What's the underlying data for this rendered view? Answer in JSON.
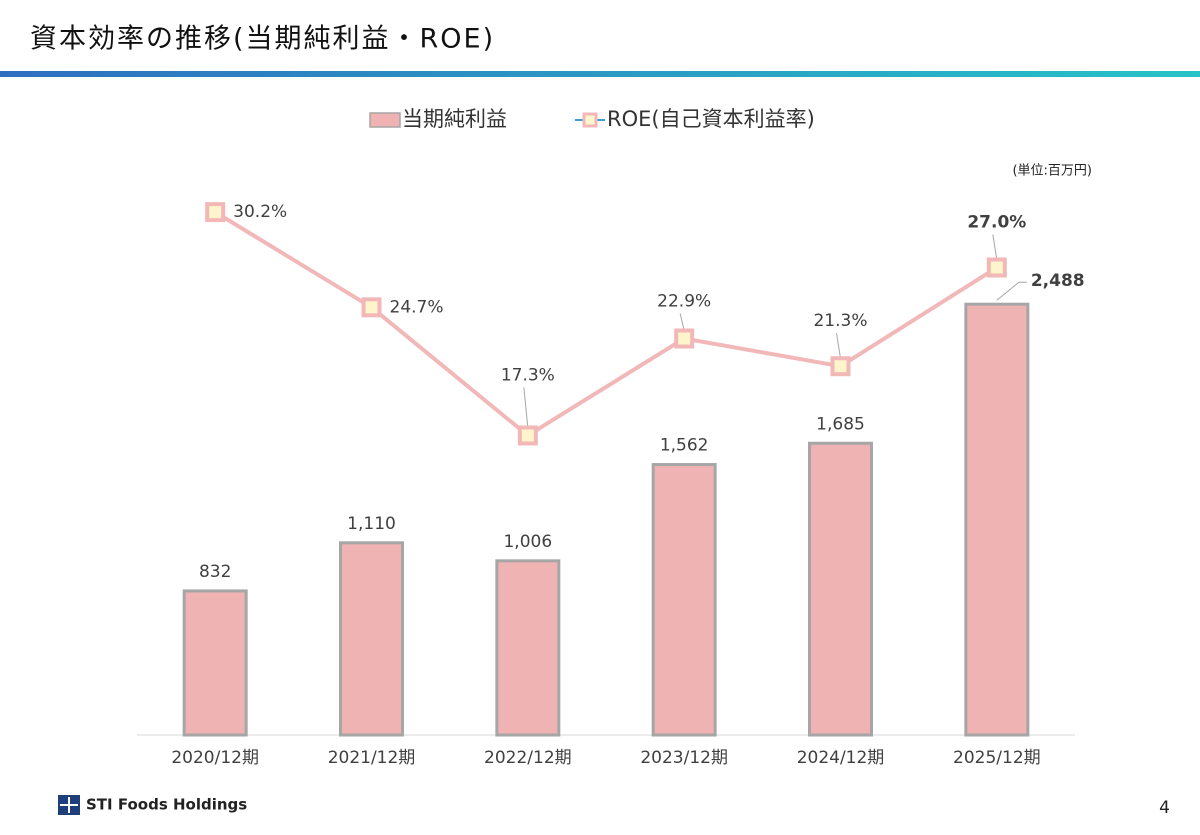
{
  "title": "資本効率の推移(当期純利益・ROE)",
  "unit": "(単位:百万円)",
  "footer": {
    "company": "STI Foods Holdings",
    "page": "4"
  },
  "chart_data": {
    "type": "bar",
    "categories": [
      "2020/12期",
      "2021/12期",
      "2022/12期",
      "2023/12期",
      "2024/12期",
      "2025/12期"
    ],
    "ylim": [
      0,
      3500
    ],
    "y2lim": [
      0,
      35
    ],
    "legend": "top",
    "series": [
      {
        "name": "当期純利益",
        "type": "bar",
        "color": "#efb3b3",
        "values": [
          832,
          1110,
          1006,
          1562,
          1685,
          2488
        ],
        "value_labels": [
          "832",
          "1,110",
          "1,006",
          "1,562",
          "1,685",
          "2,488"
        ]
      },
      {
        "name": "ROE(自己資本利益率)",
        "type": "line",
        "axis": "y2",
        "color": "#f2b8b8",
        "values": [
          30.2,
          24.7,
          17.3,
          22.9,
          21.3,
          27.0
        ],
        "value_labels": [
          "30.2%",
          "24.7%",
          "17.3%",
          "22.9%",
          "21.3%",
          "27.0%"
        ]
      }
    ]
  }
}
